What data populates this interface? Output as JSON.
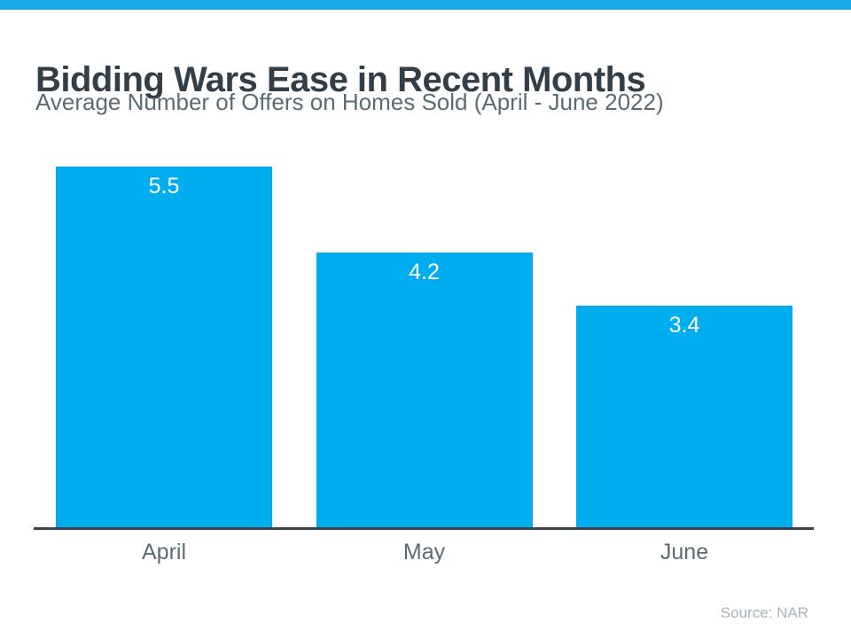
{
  "page": {
    "title": "Bidding Wars Ease in Recent Months",
    "subtitle": "Average Number of Offers on Homes Sold (April - June 2022)",
    "source": "Source: NAR"
  },
  "colors": {
    "accent_cyan": "#00aeef",
    "top_strip": "#17abe9",
    "title_text": "#323e48",
    "subtitle_text": "#5a6b76",
    "category_label_text": "#5a6b76",
    "bar_value_text": "#ffffff",
    "axis_line": "#3a444c",
    "source_text": "#a9b1bb",
    "background": "#ffffff"
  },
  "chart_data": {
    "type": "bar",
    "categories": [
      "April",
      "May",
      "June"
    ],
    "values": [
      5.5,
      4.2,
      3.4
    ],
    "value_labels": [
      "5.5",
      "4.2",
      "3.4"
    ],
    "title": "Bidding Wars Ease in Recent Months",
    "subtitle": "Average Number of Offers on Homes Sold (April - June 2022)",
    "xlabel": "",
    "ylabel": "",
    "ylim": [
      0,
      5.5
    ],
    "grid": false,
    "legend": false,
    "bar_color": "#00aeef",
    "value_label_position": "inside-top",
    "source": "Source: NAR"
  }
}
